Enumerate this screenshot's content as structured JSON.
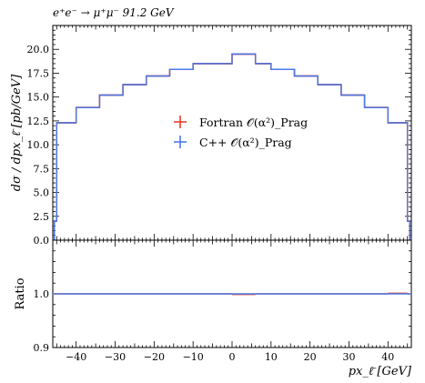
{
  "chart_data": {
    "type": "histogram",
    "title": "e⁺e⁻ → μ⁺μ⁻ 91.2 GeV",
    "xlabel": "px_ℓ̄ [GeV]",
    "ylabel": "dσ / dpx_ℓ̄ [pb/GeV]",
    "xlim": [
      -46,
      46
    ],
    "ylim": [
      0,
      22.5
    ],
    "bin_edges": [
      -45.6,
      -45,
      -40,
      -34,
      -28,
      -22,
      -16,
      -10,
      0,
      6,
      10,
      16,
      22,
      28,
      34,
      40,
      45,
      45.6
    ],
    "series": [
      {
        "name": "Fortran 𝒪(α²)_Prag",
        "color": "#e8412a",
        "values": [
          2.0,
          12.3,
          13.9,
          15.2,
          16.3,
          17.2,
          17.9,
          18.5,
          19.5,
          18.5,
          17.9,
          17.2,
          16.3,
          15.2,
          13.9,
          12.3,
          2.0
        ]
      },
      {
        "name": "C++ 𝒪(α²)_Prag",
        "color": "#4a79e8",
        "values": [
          2.0,
          12.3,
          13.9,
          15.2,
          16.3,
          17.2,
          17.9,
          18.5,
          19.5,
          18.5,
          17.9,
          17.2,
          16.3,
          15.2,
          13.9,
          12.3,
          2.0
        ]
      }
    ],
    "main_yticks": [
      "0.0",
      "2.5",
      "5.0",
      "7.5",
      "10.0",
      "12.5",
      "15.0",
      "17.5",
      "20.0"
    ],
    "xticks": [
      "−40",
      "−30",
      "−20",
      "−10",
      "0",
      "10",
      "20",
      "30",
      "40"
    ],
    "ratio": {
      "ylabel": "Ratio",
      "ylim": [
        0.9,
        1.1
      ],
      "yticks": [
        "0.9",
        "1.0"
      ],
      "values": [
        1,
        1,
        1,
        1,
        1,
        1,
        1,
        1,
        0.999,
        1,
        1,
        1,
        1,
        1,
        1,
        1.001,
        1
      ]
    }
  }
}
